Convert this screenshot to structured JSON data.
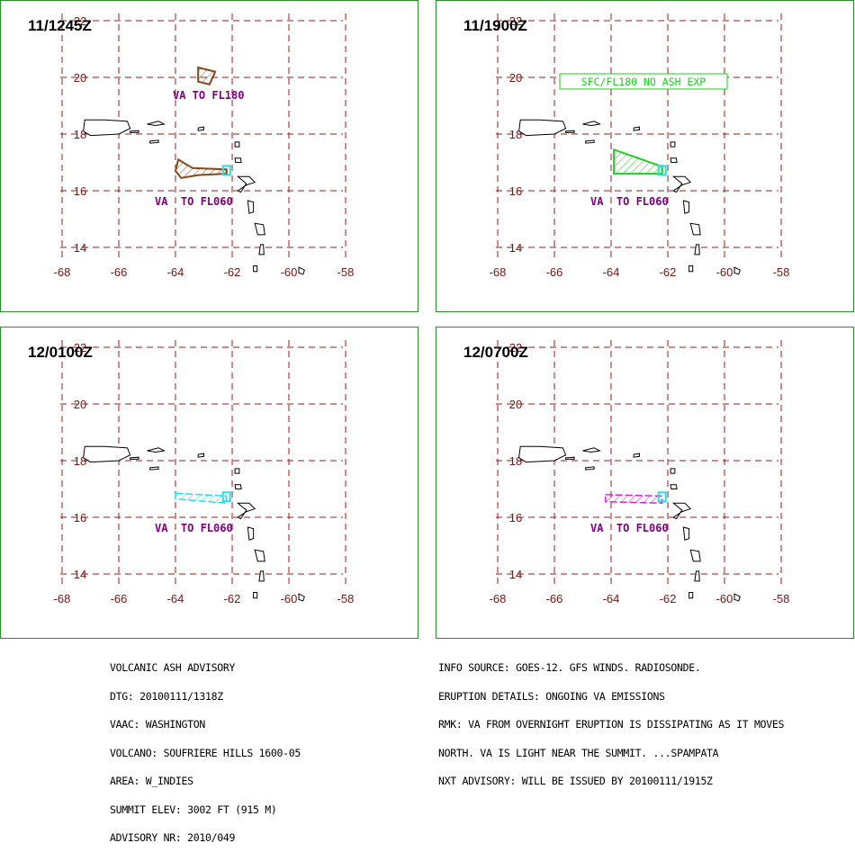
{
  "panels": [
    {
      "title": "11/1245Z",
      "labels": [
        {
          "text": "VA TO FL180",
          "pos": "north"
        },
        {
          "text": "VA  TO FL060",
          "pos": "south"
        }
      ],
      "boxed_label": "",
      "ash_color": "#8b4513"
    },
    {
      "title": "11/1900Z",
      "labels": [
        {
          "text": "VA  TO FL060",
          "pos": "south"
        }
      ],
      "boxed_label": "SFC/FL180 NO ASH EXP",
      "ash_color": "#22cc22"
    },
    {
      "title": "12/0100Z",
      "labels": [
        {
          "text": "VA  TO FL060",
          "pos": "south"
        }
      ],
      "boxed_label": "",
      "ash_color": "#22e0e8"
    },
    {
      "title": "12/0700Z",
      "labels": [
        {
          "text": "VA  TO FL060",
          "pos": "south"
        }
      ],
      "boxed_label": "",
      "ash_color": "#e020e0"
    }
  ],
  "map": {
    "lon_ticks": [
      "-68",
      "-66",
      "-64",
      "-62",
      "-60",
      "-58"
    ],
    "lat_ticks": [
      "22",
      "20",
      "18",
      "16",
      "14"
    ],
    "grid_color": "#a01818",
    "label_color": "#800080",
    "volcano_color": "#22e0e8"
  },
  "footer": {
    "left": [
      "VOLCANIC ASH ADVISORY",
      "DTG: 20100111/1318Z",
      "VAAC: WASHINGTON",
      "VOLCANO: SOUFRIERE HILLS 1600-05",
      "AREA: W_INDIES",
      "SUMMIT ELEV: 3002 FT (915 M)",
      "ADVISORY NR: 2010/049"
    ],
    "right": [
      "INFO SOURCE: GOES-12. GFS WINDS. RADIOSONDE.",
      "ERUPTION DETAILS: ONGOING VA EMISSIONS",
      "RMK: VA FROM OVERNIGHT ERUPTION IS DISSIPATING AS IT MOVES",
      "NORTH. VA IS LIGHT NEAR THE SUMMIT. ...SPAMPATA",
      "NXT ADVISORY: WILL BE ISSUED BY 20100111/1915Z"
    ]
  }
}
